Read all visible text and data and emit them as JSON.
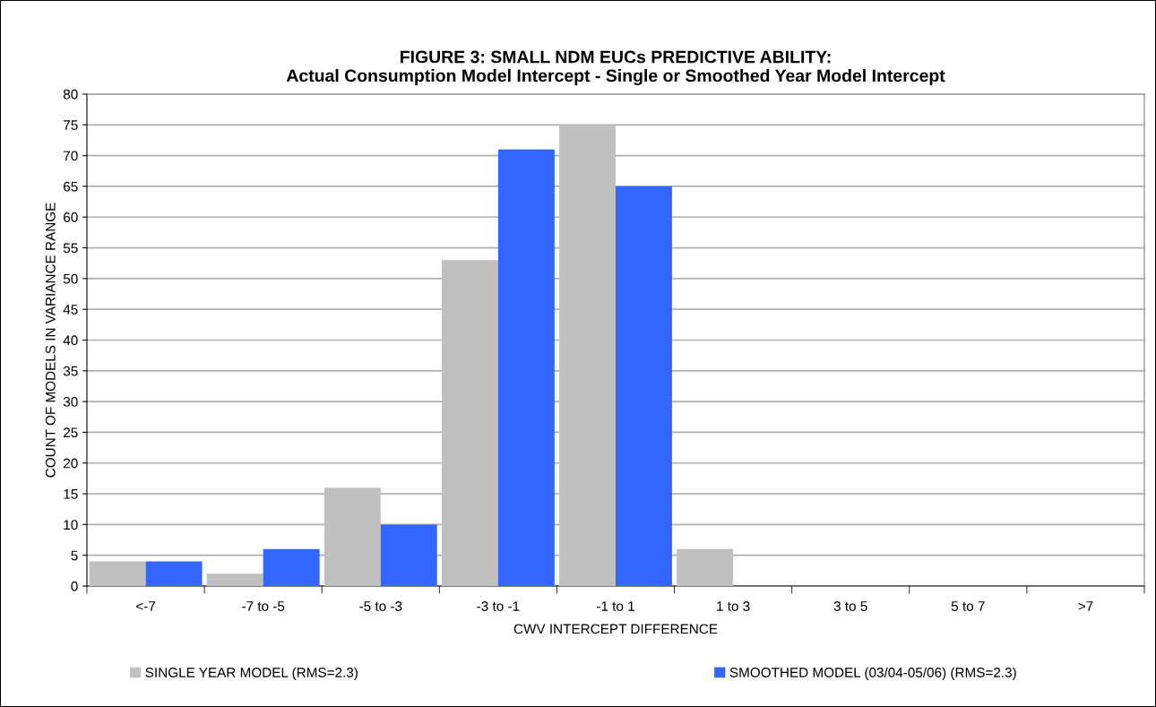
{
  "chart_data": {
    "type": "bar",
    "title": "FIGURE 3: SMALL NDM EUCs PREDICTIVE ABILITY:\nActual Consumption Model Intercept - Single or Smoothed Year Model Intercept",
    "xlabel": "CWV INTERCEPT DIFFERENCE",
    "ylabel": "COUNT OF MODELS IN VARIANCE RANGE",
    "categories": [
      "<-7",
      "-7 to -5",
      "-5 to -3",
      "-3 to -1",
      "-1 to 1",
      "1 to 3",
      "3 to 5",
      "5 to 7",
      ">7"
    ],
    "series": [
      {
        "name": "SINGLE YEAR MODEL (RMS=2.3)",
        "color": "#c0c0c0",
        "values": [
          4,
          2,
          16,
          53,
          75,
          6,
          0,
          0,
          0
        ]
      },
      {
        "name": "SMOOTHED MODEL (03/04-05/06) (RMS=2.3)",
        "color": "#3366ff",
        "values": [
          4,
          6,
          10,
          71,
          65,
          0,
          0,
          0,
          0
        ]
      }
    ],
    "ylim": [
      0,
      80
    ],
    "yticks": [
      0,
      5,
      10,
      15,
      20,
      25,
      30,
      35,
      40,
      45,
      50,
      55,
      60,
      65,
      70,
      75,
      80
    ],
    "grid": "y",
    "legend": "bottom"
  }
}
